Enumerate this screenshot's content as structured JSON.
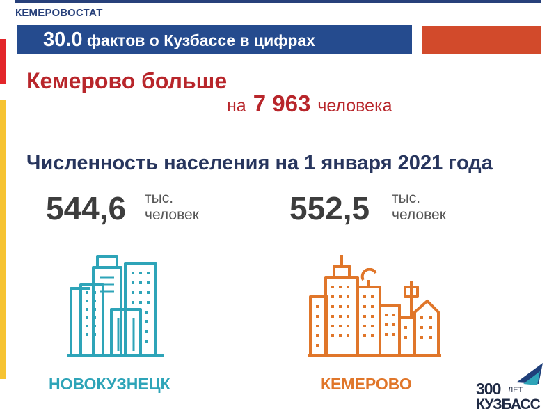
{
  "header": {
    "org": "КЕМЕРОВОСТАТ",
    "title_number": "30.0",
    "title_text": "фактов о Кузбассе в цифрах"
  },
  "headline": {
    "line1": "Кемерово больше",
    "prefix": "на",
    "amount": "7 963",
    "suffix": "человека"
  },
  "section_title": "Численность населения на 1 января 2021 года",
  "stats": [
    {
      "value": "544,6",
      "unit_line1": "тыс.",
      "unit_line2": "человек"
    },
    {
      "value": "552,5",
      "unit_line1": "тыс.",
      "unit_line2": "человек"
    }
  ],
  "cities": [
    {
      "name": "НОВОКУЗНЕЦК",
      "color": "#2ea4b8",
      "icon": "city-buildings-icon"
    },
    {
      "name": "КЕМЕРОВО",
      "color": "#e0762a",
      "icon": "city-buildings-icon"
    }
  ],
  "logo": {
    "number": "300",
    "small": "ЛЕТ",
    "word": "КУЗБАСС"
  },
  "colors": {
    "navy": "#254b8e",
    "red": "#b8262b",
    "accent_red": "#d24a2b",
    "teal": "#2ea4b8",
    "orange": "#e0762a",
    "yellow": "#f6c332"
  }
}
